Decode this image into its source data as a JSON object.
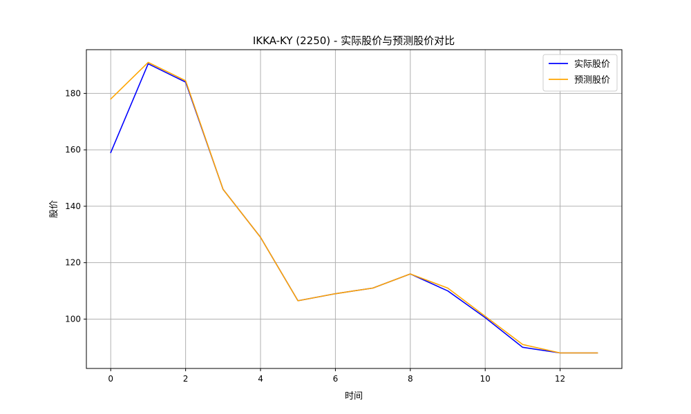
{
  "chart_data": {
    "type": "line",
    "title": "IKKA-KY (2250) - 实际股价与预测股价对比",
    "xlabel": "时间",
    "ylabel": "股价",
    "xlim": [
      -0.65,
      13.65
    ],
    "ylim": [
      82.5,
      195.5
    ],
    "x_ticks": [
      0,
      2,
      4,
      6,
      8,
      10,
      12
    ],
    "y_ticks": [
      100,
      120,
      140,
      160,
      180
    ],
    "grid": true,
    "legend_position": "top-right",
    "x": [
      0,
      1,
      2,
      3,
      4,
      5,
      6,
      7,
      8,
      9,
      10,
      11,
      12,
      13
    ],
    "series": [
      {
        "name": "实际股价",
        "color": "#0000ff",
        "values": [
          159.0,
          190.5,
          184.0,
          146.0,
          129.0,
          106.5,
          109.0,
          111.0,
          116.0,
          110.0,
          100.5,
          90.0,
          88.0,
          88.0
        ]
      },
      {
        "name": "预测股价",
        "color": "#ffa500",
        "values": [
          178.0,
          191.0,
          184.5,
          146.0,
          129.0,
          106.5,
          109.0,
          111.0,
          116.0,
          111.0,
          101.0,
          91.0,
          88.0,
          88.0
        ]
      }
    ]
  }
}
